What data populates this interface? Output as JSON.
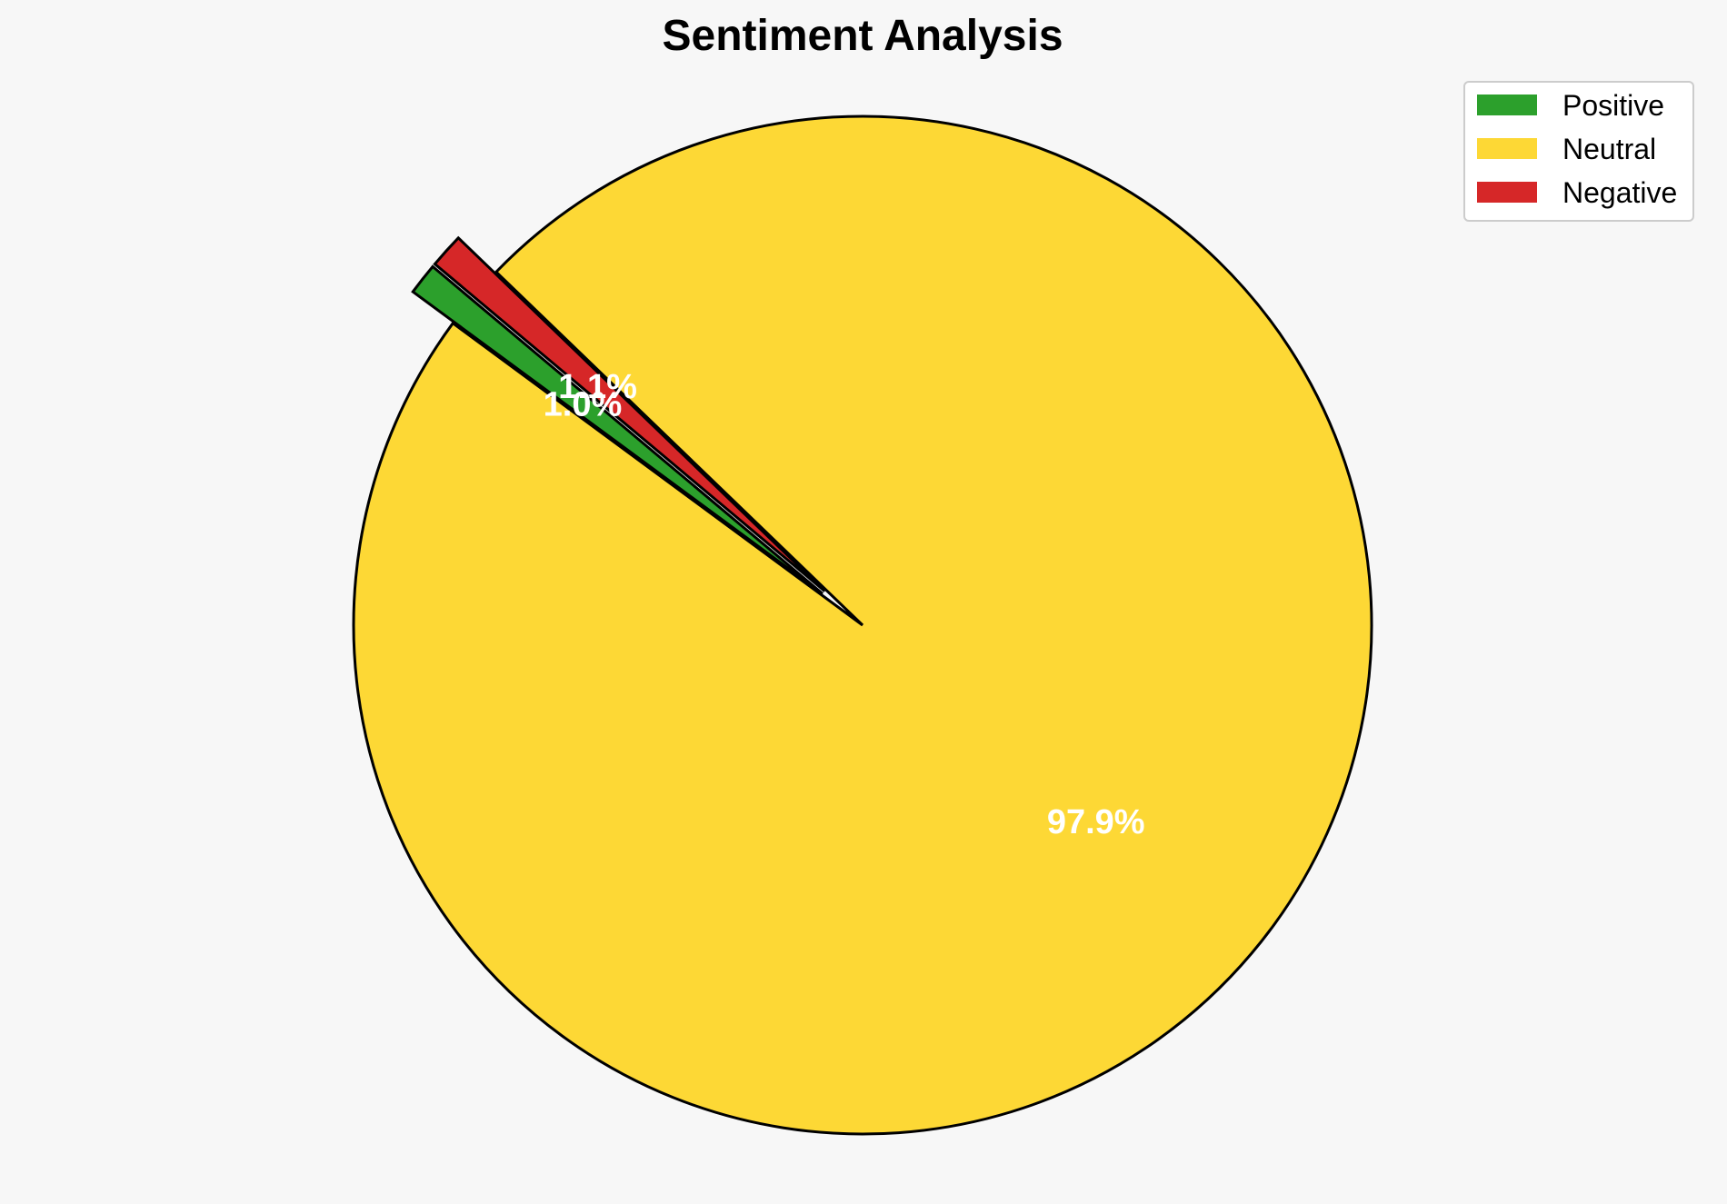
{
  "chart_data": {
    "type": "pie",
    "title": "Sentiment Analysis",
    "categories": [
      "Positive",
      "Neutral",
      "Negative"
    ],
    "values": [
      1.0,
      97.9,
      1.1
    ],
    "value_labels": [
      "1.0%",
      "97.9%",
      "1.1%"
    ],
    "colors": [
      "#2ca02c",
      "#fdd835",
      "#d62728"
    ],
    "exploded": [
      "Positive",
      "Negative"
    ],
    "legend": {
      "placement": "top-right",
      "entries": [
        "Positive",
        "Neutral",
        "Negative"
      ]
    }
  }
}
